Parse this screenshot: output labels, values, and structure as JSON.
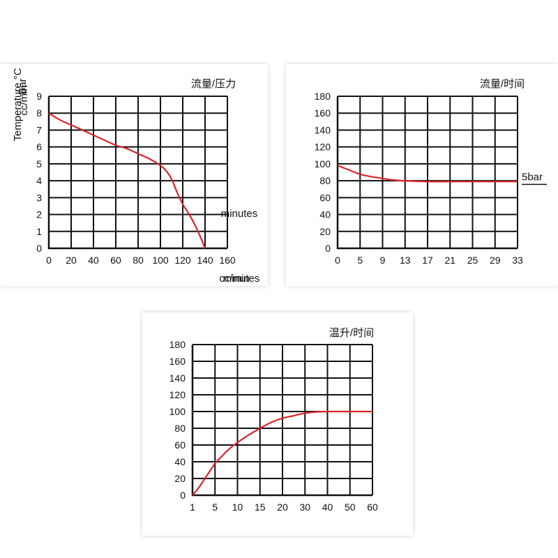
{
  "charts": [
    {
      "chart_data": {
        "type": "line",
        "title": "流量/压力",
        "xlabel": "cc/min",
        "ylabel": "Bar",
        "xlim": [
          0,
          160
        ],
        "ylim": [
          0,
          9
        ],
        "grid": true,
        "x_ticks": [
          "0",
          "20",
          "40",
          "60",
          "80",
          "100",
          "120",
          "140",
          "160"
        ],
        "y_ticks": [
          "0",
          "1",
          "2",
          "3",
          "4",
          "5",
          "6",
          "7",
          "8",
          "9"
        ],
        "series": [
          {
            "color": "#d8262b",
            "x": [
              0,
              10,
              20,
              30,
              40,
              50,
              60,
              70,
              80,
              90,
              100,
              105,
              110,
              115,
              120,
              125,
              130,
              135,
              140
            ],
            "y": [
              8,
              7.6,
              7.3,
              7.0,
              6.7,
              6.4,
              6.1,
              5.9,
              5.6,
              5.3,
              4.9,
              4.6,
              4.1,
              3.3,
              2.6,
              2.1,
              1.5,
              0.8,
              0
            ]
          }
        ]
      }
    },
    {
      "chart_data": {
        "type": "line",
        "title": "流量/时间",
        "xlabel": "minutes",
        "ylabel": "cc/min",
        "xlim": [
          0,
          33
        ],
        "ylim": [
          0,
          180
        ],
        "grid": true,
        "x_ticks": [
          "0",
          "5",
          "9",
          "13",
          "17",
          "21",
          "25",
          "29",
          "33"
        ],
        "y_ticks": [
          "0",
          "20",
          "40",
          "60",
          "80",
          "100",
          "120",
          "140",
          "160",
          "180"
        ],
        "annotation": "5bar",
        "series": [
          {
            "color": "#d8262b",
            "x": [
              0,
              2,
              4,
              6,
              8,
              10,
              12,
              14,
              17,
              21,
              25,
              29,
              33
            ],
            "y": [
              98,
              93,
              88,
              85,
              83,
              81,
              80,
              79.5,
              79,
              79,
              79,
              79,
              79
            ]
          }
        ]
      }
    },
    {
      "chart_data": {
        "type": "line",
        "title": "温升/时间",
        "xlabel": "minutes",
        "ylabel": "Temperature °C",
        "xlim": [
          1,
          60
        ],
        "ylim": [
          0,
          180
        ],
        "grid": true,
        "x_ticks": [
          "1",
          "5",
          "10",
          "15",
          "20",
          "30",
          "40",
          "50",
          "60"
        ],
        "y_ticks": [
          "0",
          "20",
          "40",
          "60",
          "80",
          "100",
          "120",
          "140",
          "160",
          "180"
        ],
        "series": [
          {
            "color": "#d8262b",
            "tick_index": [
              0,
              0.25,
              0.5,
              0.75,
              1,
              1.25,
              1.5,
              1.75,
              2,
              2.5,
              3,
              3.5,
              4,
              4.5,
              5,
              5.5,
              6,
              7,
              8
            ],
            "y": [
              0,
              8,
              18,
              28,
              38,
              45,
              52,
              58,
              63,
              72,
              80,
              87,
              92,
              95,
              98,
              99.5,
              100,
              100,
              100
            ]
          }
        ]
      }
    }
  ]
}
